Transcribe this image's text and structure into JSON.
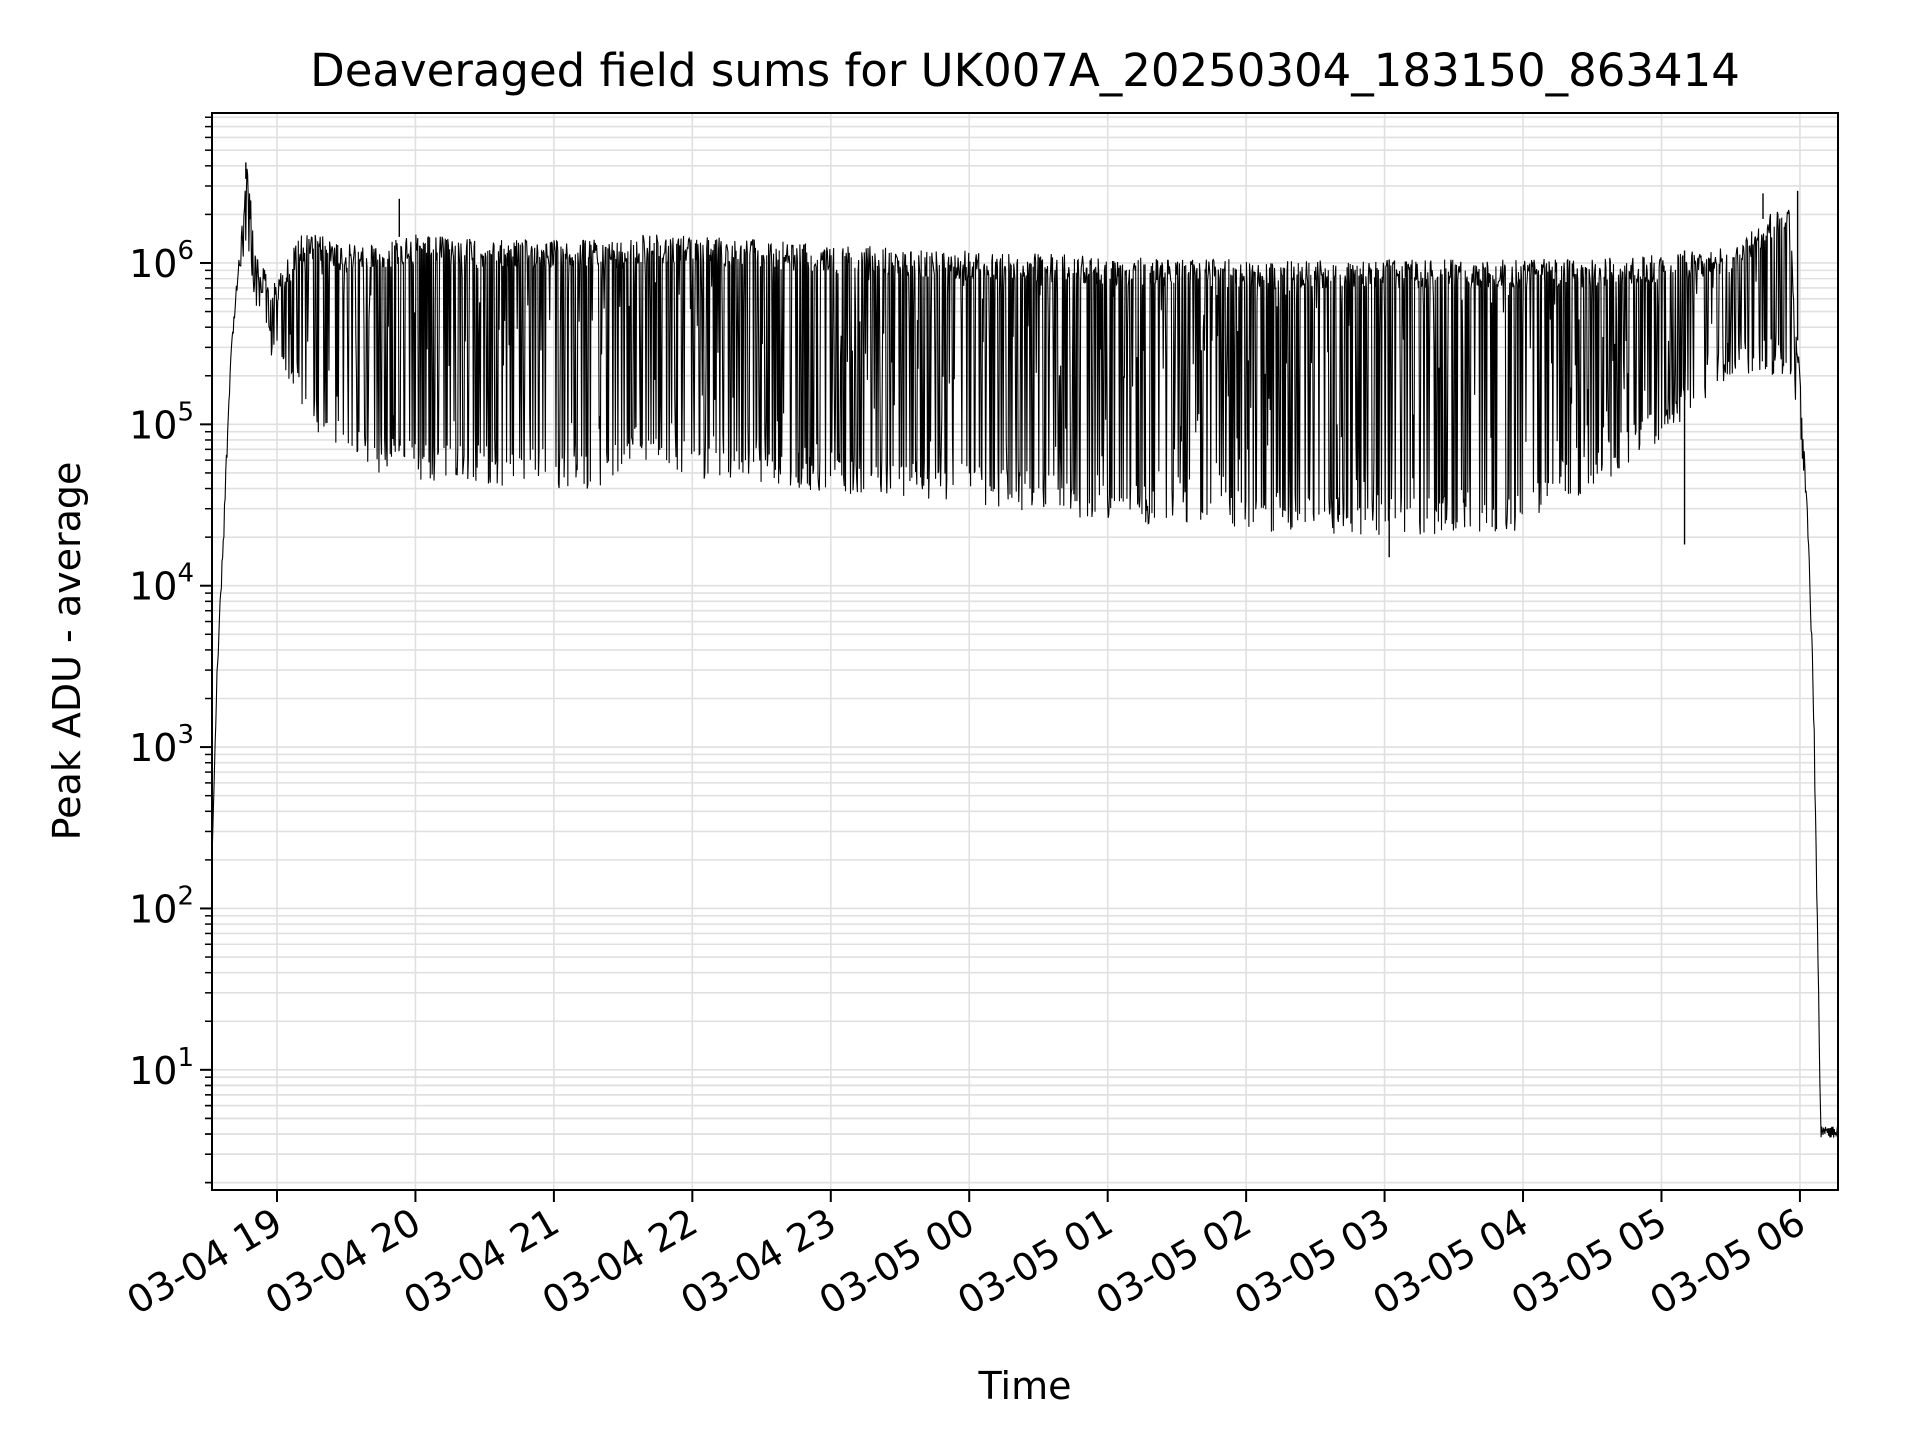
{
  "chart_data": {
    "type": "line",
    "title": "Deaveraged field sums for UK007A_20250304_183150_863414",
    "xlabel": "Time",
    "ylabel": "Peak ADU - average",
    "x_scale": "time",
    "y_scale": "log",
    "xlim": [
      "2025-03-04 18:31:50",
      "2025-03-05 06:16:30"
    ],
    "ylim": [
      1.8,
      8500000
    ],
    "grid": true,
    "legend": "none",
    "colors": {
      "line": "#000000",
      "grid": "#e0e0e0",
      "background": "#ffffff"
    },
    "x_ticks": [
      {
        "value": "2025-03-04 19:00",
        "label": "03-04 19"
      },
      {
        "value": "2025-03-04 20:00",
        "label": "03-04 20"
      },
      {
        "value": "2025-03-04 21:00",
        "label": "03-04 21"
      },
      {
        "value": "2025-03-04 22:00",
        "label": "03-04 22"
      },
      {
        "value": "2025-03-04 23:00",
        "label": "03-04 23"
      },
      {
        "value": "2025-03-05 00:00",
        "label": "03-05 00"
      },
      {
        "value": "2025-03-05 01:00",
        "label": "03-05 01"
      },
      {
        "value": "2025-03-05 02:00",
        "label": "03-05 02"
      },
      {
        "value": "2025-03-05 03:00",
        "label": "03-05 03"
      },
      {
        "value": "2025-03-05 04:00",
        "label": "03-05 04"
      },
      {
        "value": "2025-03-05 05:00",
        "label": "03-05 05"
      },
      {
        "value": "2025-03-05 06:00",
        "label": "03-05 06"
      }
    ],
    "y_ticks": [
      {
        "value": 10,
        "base": "10",
        "exp": "1"
      },
      {
        "value": 100,
        "base": "10",
        "exp": "2"
      },
      {
        "value": 1000,
        "base": "10",
        "exp": "3"
      },
      {
        "value": 10000,
        "base": "10",
        "exp": "4"
      },
      {
        "value": 100000,
        "base": "10",
        "exp": "5"
      },
      {
        "value": 1000000,
        "base": "10",
        "exp": "6"
      }
    ],
    "series": [
      {
        "envelope": [
          {
            "t": "2025-03-04 18:31:50",
            "upper": 200,
            "lower": 200
          },
          {
            "t": "2025-03-04 18:34:00",
            "upper": 3000,
            "lower": 2500
          },
          {
            "t": "2025-03-04 18:37:00",
            "upper": 30000,
            "lower": 20000
          },
          {
            "t": "2025-03-04 18:40:00",
            "upper": 300000,
            "lower": 250000
          },
          {
            "t": "2025-03-04 18:43:00",
            "upper": 900000,
            "lower": 700000
          },
          {
            "t": "2025-03-04 18:47:00",
            "upper": 4000000,
            "lower": 900000
          },
          {
            "t": "2025-03-04 18:52:00",
            "upper": 1000000,
            "lower": 400000
          },
          {
            "t": "2025-03-04 19:00:00",
            "upper": 800000,
            "lower": 220000
          },
          {
            "t": "2025-03-04 19:10:00",
            "upper": 1500000,
            "lower": 130000
          },
          {
            "t": "2025-03-04 19:20:00",
            "upper": 1500000,
            "lower": 80000
          },
          {
            "t": "2025-03-04 19:30:00",
            "upper": 1300000,
            "lower": 55000
          },
          {
            "t": "2025-03-04 20:00:00",
            "upper": 1500000,
            "lower": 45000
          },
          {
            "t": "2025-03-04 20:30:00",
            "upper": 1400000,
            "lower": 42000
          },
          {
            "t": "2025-03-04 21:00:00",
            "upper": 1400000,
            "lower": 40000
          },
          {
            "t": "2025-03-04 21:30:00",
            "upper": 1400000,
            "lower": 38000
          },
          {
            "t": "2025-03-04 21:35:00",
            "upper": 1500000,
            "lower": 60000
          },
          {
            "t": "2025-03-04 22:00:00",
            "upper": 1500000,
            "lower": 45000
          },
          {
            "t": "2025-03-04 23:00:00",
            "upper": 1300000,
            "lower": 38000
          },
          {
            "t": "2025-03-05 00:00:00",
            "upper": 1200000,
            "lower": 32000
          },
          {
            "t": "2025-03-05 01:00:00",
            "upper": 1100000,
            "lower": 25000
          },
          {
            "t": "2025-03-05 02:00:00",
            "upper": 1050000,
            "lower": 22000
          },
          {
            "t": "2025-03-05 03:00:00",
            "upper": 1050000,
            "lower": 20000
          },
          {
            "t": "2025-03-05 04:00:00",
            "upper": 1050000,
            "lower": 22000
          },
          {
            "t": "2025-03-05 04:50:00",
            "upper": 1100000,
            "lower": 60000
          },
          {
            "t": "2025-03-05 05:30:00",
            "upper": 1300000,
            "lower": 200000
          },
          {
            "t": "2025-03-05 05:55:00",
            "upper": 2500000,
            "lower": 200000
          },
          {
            "t": "2025-03-05 06:00:00",
            "upper": 200000,
            "lower": 100000
          },
          {
            "t": "2025-03-05 06:04:00",
            "upper": 20000,
            "lower": 15000
          },
          {
            "t": "2025-03-05 06:06:00",
            "upper": 2000,
            "lower": 1000
          },
          {
            "t": "2025-03-05 06:07:30",
            "upper": 100,
            "lower": 80
          },
          {
            "t": "2025-03-05 06:08:30",
            "upper": 20,
            "lower": 10
          },
          {
            "t": "2025-03-05 06:09:00",
            "upper": 4.5,
            "lower": 3.8
          },
          {
            "t": "2025-03-05 06:16:30",
            "upper": 4.5,
            "lower": 3.8
          }
        ],
        "spikes": [
          {
            "t": "2025-03-04 18:46:30",
            "value": 4200000
          },
          {
            "t": "2025-03-04 19:53:00",
            "value": 2500000
          },
          {
            "t": "2025-03-05 05:44:00",
            "value": 2700000
          },
          {
            "t": "2025-03-05 05:59:00",
            "value": 2800000
          },
          {
            "t": "2025-03-05 03:02:00",
            "value": 15000
          },
          {
            "t": "2025-03-05 05:10:00",
            "value": 18000
          }
        ]
      }
    ]
  }
}
